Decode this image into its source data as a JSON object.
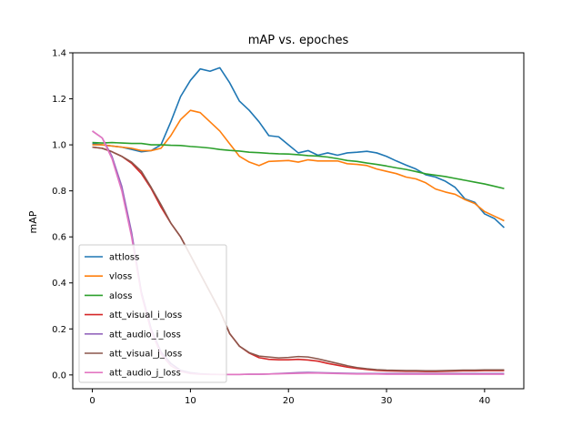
{
  "chart_data": {
    "type": "line",
    "title": "mAP vs. epoches",
    "xlabel": "",
    "ylabel": "mAP",
    "xlim": [
      -2,
      44
    ],
    "ylim": [
      -0.06,
      1.4
    ],
    "xticks": [
      0,
      10,
      20,
      30,
      40
    ],
    "xtick_labels": [
      "0",
      "10",
      "20",
      "30",
      "40"
    ],
    "yticks": [
      0.0,
      0.2,
      0.4,
      0.6,
      0.8,
      1.0,
      1.2,
      1.4
    ],
    "ytick_labels": [
      "0.0",
      "0.2",
      "0.4",
      "0.6",
      "0.8",
      "1.0",
      "1.2",
      "1.4"
    ],
    "legend_position": "lower-left",
    "grid": false,
    "x": [
      0,
      1,
      2,
      3,
      4,
      5,
      6,
      7,
      8,
      9,
      10,
      11,
      12,
      13,
      14,
      15,
      16,
      17,
      18,
      19,
      20,
      21,
      22,
      23,
      24,
      25,
      26,
      27,
      28,
      29,
      30,
      31,
      32,
      33,
      34,
      35,
      36,
      37,
      38,
      39,
      40,
      41,
      42
    ],
    "series": [
      {
        "name": "attloss",
        "color": "#1f77b4",
        "values": [
          1.005,
          1.0,
          0.995,
          0.99,
          0.98,
          0.97,
          0.975,
          1.0,
          1.1,
          1.21,
          1.28,
          1.33,
          1.32,
          1.335,
          1.27,
          1.19,
          1.15,
          1.1,
          1.04,
          1.035,
          1.0,
          0.965,
          0.975,
          0.955,
          0.965,
          0.955,
          0.965,
          0.968,
          0.972,
          0.965,
          0.95,
          0.93,
          0.912,
          0.895,
          0.87,
          0.86,
          0.842,
          0.815,
          0.765,
          0.75,
          0.7,
          0.68,
          0.64
        ]
      },
      {
        "name": "vloss",
        "color": "#ff7f0e",
        "values": [
          1.0,
          1.0,
          0.995,
          0.99,
          0.985,
          0.975,
          0.975,
          0.985,
          1.04,
          1.11,
          1.15,
          1.14,
          1.1,
          1.06,
          1.005,
          0.95,
          0.925,
          0.91,
          0.928,
          0.93,
          0.932,
          0.925,
          0.935,
          0.93,
          0.93,
          0.93,
          0.918,
          0.915,
          0.91,
          0.895,
          0.885,
          0.875,
          0.86,
          0.852,
          0.835,
          0.808,
          0.795,
          0.785,
          0.762,
          0.745,
          0.71,
          0.69,
          0.67
        ]
      },
      {
        "name": "aloss",
        "color": "#2ca02c",
        "values": [
          1.01,
          1.008,
          1.01,
          1.008,
          1.006,
          1.006,
          1.0,
          1.0,
          0.998,
          0.997,
          0.993,
          0.99,
          0.986,
          0.98,
          0.976,
          0.973,
          0.968,
          0.966,
          0.963,
          0.961,
          0.96,
          0.957,
          0.953,
          0.951,
          0.947,
          0.94,
          0.932,
          0.928,
          0.921,
          0.915,
          0.908,
          0.9,
          0.893,
          0.884,
          0.874,
          0.868,
          0.862,
          0.854,
          0.846,
          0.838,
          0.83,
          0.82,
          0.81
        ]
      },
      {
        "name": "att_visual_i_loss",
        "color": "#d62728",
        "values": [
          0.99,
          0.985,
          0.97,
          0.95,
          0.92,
          0.875,
          0.81,
          0.73,
          0.66,
          0.6,
          0.52,
          0.44,
          0.36,
          0.28,
          0.18,
          0.125,
          0.095,
          0.075,
          0.068,
          0.066,
          0.066,
          0.068,
          0.065,
          0.06,
          0.05,
          0.042,
          0.034,
          0.028,
          0.024,
          0.02,
          0.018,
          0.017,
          0.016,
          0.016,
          0.015,
          0.015,
          0.016,
          0.017,
          0.018,
          0.018,
          0.019,
          0.019,
          0.019
        ]
      },
      {
        "name": "att_audio_i_loss",
        "color": "#9467bd",
        "values": [
          1.06,
          1.03,
          0.95,
          0.82,
          0.62,
          0.36,
          0.2,
          0.1,
          0.05,
          0.02,
          0.01,
          0.005,
          0.003,
          0.002,
          0.002,
          0.002,
          0.003,
          0.003,
          0.004,
          0.006,
          0.008,
          0.01,
          0.011,
          0.01,
          0.009,
          0.008,
          0.007,
          0.006,
          0.006,
          0.006,
          0.006,
          0.006,
          0.006,
          0.006,
          0.006,
          0.006,
          0.006,
          0.006,
          0.006,
          0.006,
          0.006,
          0.006,
          0.006
        ]
      },
      {
        "name": "att_visual_j_loss",
        "color": "#8c564b",
        "values": [
          0.99,
          0.985,
          0.97,
          0.95,
          0.925,
          0.885,
          0.815,
          0.74,
          0.66,
          0.6,
          0.52,
          0.44,
          0.36,
          0.28,
          0.18,
          0.125,
          0.097,
          0.082,
          0.078,
          0.074,
          0.076,
          0.08,
          0.078,
          0.07,
          0.06,
          0.05,
          0.04,
          0.032,
          0.027,
          0.023,
          0.021,
          0.02,
          0.019,
          0.019,
          0.018,
          0.018,
          0.019,
          0.02,
          0.021,
          0.021,
          0.022,
          0.022,
          0.022
        ]
      },
      {
        "name": "att_audio_j_loss",
        "color": "#e377c2",
        "values": [
          1.06,
          1.03,
          0.94,
          0.8,
          0.6,
          0.35,
          0.19,
          0.09,
          0.04,
          0.015,
          0.006,
          0.003,
          0.002,
          0.002,
          0.002,
          0.002,
          0.003,
          0.003,
          0.004,
          0.005,
          0.006,
          0.007,
          0.008,
          0.008,
          0.007,
          0.006,
          0.005,
          0.004,
          0.004,
          0.004,
          0.003,
          0.003,
          0.003,
          0.003,
          0.003,
          0.003,
          0.003,
          0.003,
          0.003,
          0.003,
          0.003,
          0.003,
          0.003
        ]
      }
    ]
  }
}
